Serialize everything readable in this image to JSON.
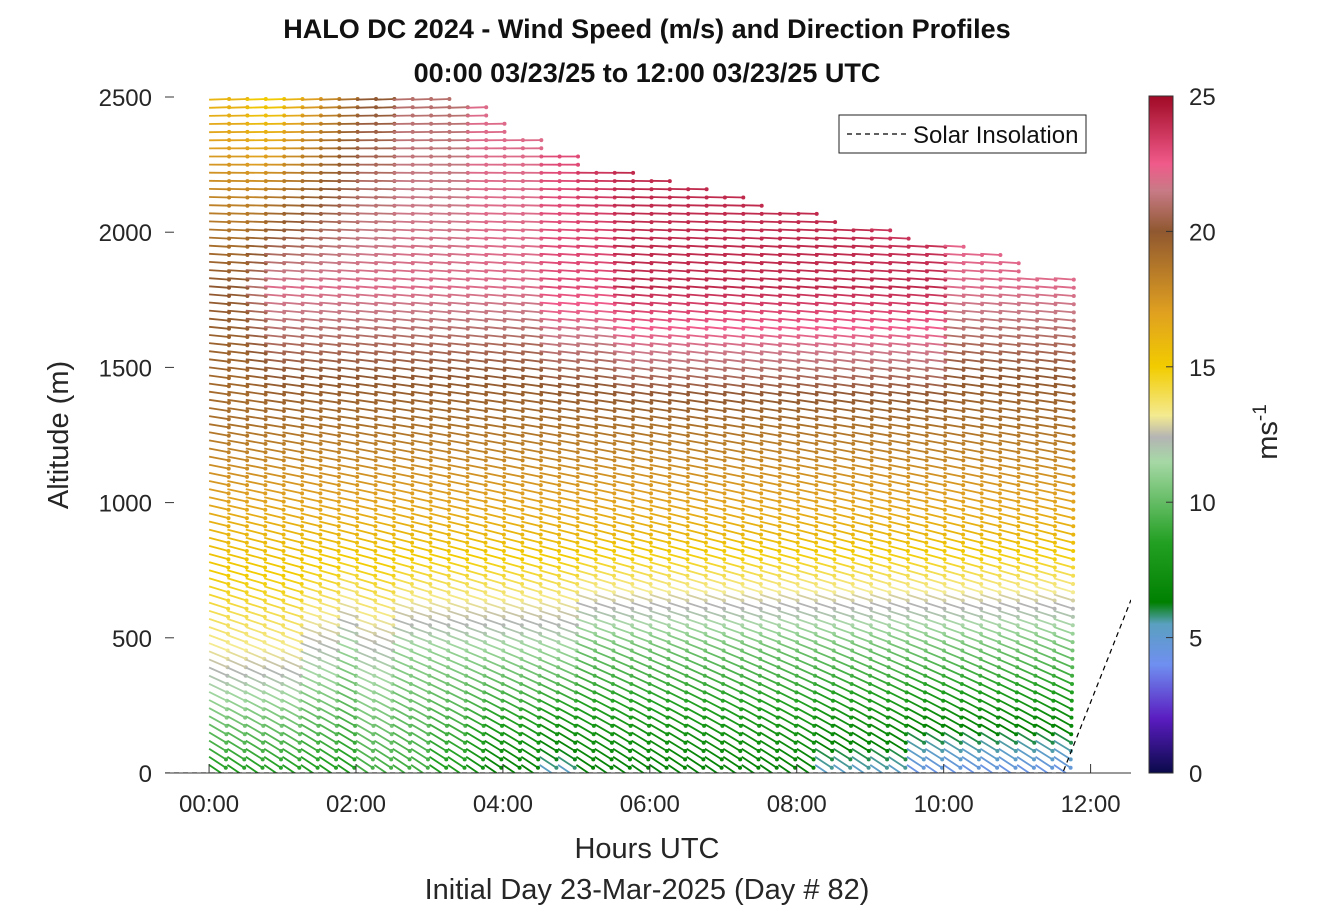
{
  "chart_data": {
    "type": "barbs-wind-profile",
    "title_line1": "HALO DC 2024 - Wind Speed (m/s) and Direction Profiles",
    "title_line2": "00:00 03/23/25 to 12:00 03/23/25  UTC",
    "xlabel": "Hours UTC",
    "xlabel2": "Initial Day 23-Mar-2025 (Day # 82)",
    "ylabel": "Altitude (m)",
    "xlim": [
      -0.6,
      12.55
    ],
    "ylim": [
      0,
      2500
    ],
    "x_ticks": [
      0,
      2,
      4,
      6,
      8,
      10,
      12
    ],
    "x_tick_labels": [
      "00:00",
      "02:00",
      "04:00",
      "06:00",
      "08:00",
      "10:00",
      "12:00"
    ],
    "y_ticks": [
      0,
      500,
      1000,
      1500,
      2000,
      2500
    ],
    "y_tick_labels": [
      "0",
      "500",
      "1000",
      "1500",
      "2000",
      "2500"
    ],
    "colorbar": {
      "range": [
        0,
        25
      ],
      "ticks": [
        0,
        5,
        10,
        15,
        20,
        25
      ],
      "tick_labels": [
        "0",
        "5",
        "10",
        "15",
        "20",
        "25"
      ],
      "label_base": "ms",
      "label_sup": "-1",
      "stops": [
        {
          "v": 0,
          "c": "#0a0a4a"
        },
        {
          "v": 2,
          "c": "#5a1cc0"
        },
        {
          "v": 4,
          "c": "#6f8ff0"
        },
        {
          "v": 5.5,
          "c": "#5aa0c0"
        },
        {
          "v": 6.3,
          "c": "#008000"
        },
        {
          "v": 8.5,
          "c": "#22a022"
        },
        {
          "v": 11.5,
          "c": "#a6d8a6"
        },
        {
          "v": 12.4,
          "c": "#b4b4b4"
        },
        {
          "v": 13.2,
          "c": "#f4ea90"
        },
        {
          "v": 15,
          "c": "#f2cc00"
        },
        {
          "v": 17,
          "c": "#e0a020"
        },
        {
          "v": 20,
          "c": "#905830"
        },
        {
          "v": 21.5,
          "c": "#c87a86"
        },
        {
          "v": 22.5,
          "c": "#f05a8a"
        },
        {
          "v": 25,
          "c": "#a00a25"
        }
      ]
    },
    "legend": {
      "label": "Solar Insolation",
      "position": "top-right",
      "style": "dashed"
    },
    "solar_insolation": [
      {
        "x": -0.6,
        "y": 0
      },
      {
        "x": 11.62,
        "y": 0
      },
      {
        "x": 12.55,
        "y": 640
      }
    ],
    "wind_profiles": {
      "times": [
        0.0,
        0.25,
        0.5,
        0.75,
        1.0,
        1.25,
        1.5,
        1.75,
        2.0,
        2.25,
        2.5,
        2.75,
        3.0,
        3.25,
        3.5,
        3.75,
        4.0,
        4.25,
        4.5,
        4.75,
        5.0,
        5.25,
        5.5,
        5.75,
        6.0,
        6.25,
        6.5,
        6.75,
        7.0,
        7.25,
        7.5,
        7.75,
        8.0,
        8.25,
        8.5,
        8.75,
        9.0,
        9.25,
        9.5,
        9.75,
        10.0,
        10.25,
        10.5,
        10.75,
        11.0,
        11.25,
        11.5
      ],
      "top_altitude_m": [
        2500,
        2500,
        2500,
        2500,
        2500,
        2500,
        2500,
        2500,
        2500,
        2500,
        2500,
        2500,
        2500,
        2480,
        2480,
        2400,
        2340,
        2340,
        2300,
        2290,
        2240,
        2240,
        2230,
        2190,
        2210,
        2160,
        2160,
        2150,
        2130,
        2110,
        2080,
        2080,
        2070,
        2050,
        2030,
        2030,
        2030,
        2000,
        1950,
        1950,
        1950,
        1940,
        1930,
        1890,
        1850,
        1830,
        1830
      ],
      "low_level_speed_ms": [
        8,
        8,
        8,
        8,
        8,
        8,
        8,
        8,
        9,
        9,
        9,
        9,
        8,
        8,
        7,
        6,
        6,
        6,
        5,
        5,
        6,
        6,
        6,
        6,
        6,
        6,
        6,
        6,
        6,
        6,
        6,
        6,
        6,
        5,
        5,
        5,
        5,
        5,
        4,
        4,
        4,
        4,
        4,
        4,
        4,
        4,
        4
      ],
      "mid_level_speed_ms": [
        13,
        13,
        13,
        13,
        13,
        12,
        12,
        11,
        12,
        12,
        11,
        11,
        11,
        11,
        11,
        11,
        11,
        11,
        11,
        11,
        10,
        10,
        10,
        10,
        10,
        10,
        10,
        10,
        10,
        10,
        10,
        10,
        10,
        10,
        10,
        10,
        10,
        10,
        10,
        10,
        10,
        10,
        10,
        10,
        10,
        10,
        10
      ],
      "upper_level_speed_ms": [
        20,
        20,
        21,
        22,
        22,
        22,
        22,
        22,
        22,
        22,
        22,
        22,
        22,
        22,
        22,
        22,
        22,
        22,
        23,
        23,
        23,
        23,
        24,
        24,
        24,
        24,
        24,
        24,
        24,
        24,
        24,
        24,
        24,
        24,
        24,
        24,
        24,
        24,
        24,
        24,
        22,
        22,
        22,
        22,
        22,
        22,
        22
      ],
      "top_level_speed_ms": [
        16,
        16,
        15,
        15,
        16,
        17,
        18,
        19,
        20,
        20,
        21,
        21,
        21,
        21,
        22,
        22,
        22,
        22,
        23,
        23,
        24,
        24,
        24,
        24,
        24,
        24,
        24,
        24,
        24,
        24,
        24,
        24,
        24,
        24,
        24,
        24,
        23,
        23,
        23,
        23,
        23,
        23,
        23,
        23,
        23,
        23,
        23
      ]
    }
  }
}
